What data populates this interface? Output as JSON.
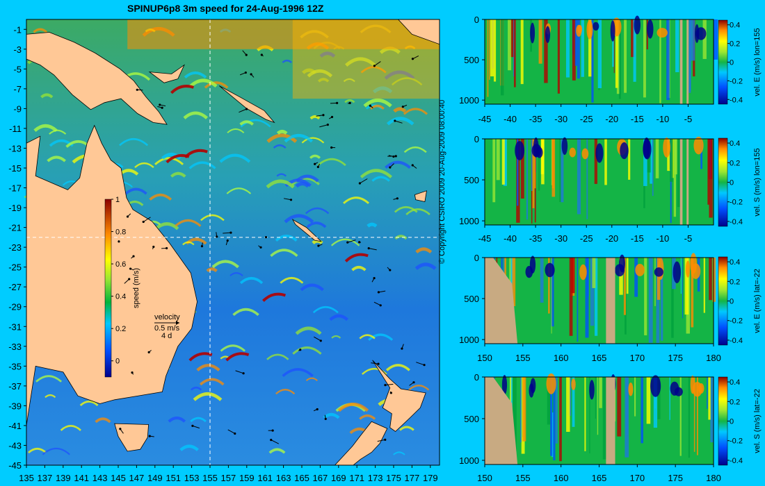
{
  "title": "SPINUP6p8 3m speed for 24-Aug-1996 12Z",
  "copyright": "© Copyright CSIRO 2009  20-Aug-2009 08:00:40",
  "colors": {
    "background": "#00ccff",
    "land": "#ffc896",
    "section_land": "#c8aa82",
    "guide_line": "#ffffff"
  },
  "chart_data": [
    {
      "type": "heatmap",
      "name": "map",
      "x_ticks": [
        135,
        137,
        139,
        141,
        143,
        145,
        147,
        149,
        151,
        153,
        155,
        157,
        159,
        161,
        163,
        165,
        167,
        169,
        171,
        173,
        175,
        177,
        179
      ],
      "y_ticks": [
        -1,
        -3,
        -5,
        -7,
        -9,
        -11,
        -13,
        -15,
        -17,
        -19,
        -21,
        -23,
        -25,
        -27,
        -29,
        -31,
        -33,
        -35,
        -37,
        -39,
        -41,
        -43,
        -45
      ],
      "xlim": [
        135,
        180
      ],
      "ylim": [
        -45,
        0
      ],
      "guide_lon": 155,
      "guide_lat": -22,
      "colorbar": {
        "label": "speed (m/s)",
        "ticks": [
          0,
          0.2,
          0.4,
          0.6,
          0.8,
          1
        ],
        "range": [
          -0.1,
          1
        ]
      },
      "velocity_legend": {
        "label": "velocity",
        "scale": "0.5 m/s",
        "time": "4 d"
      }
    },
    {
      "type": "heatmap",
      "name": "section-1",
      "colorbar_label": "vel. E (m/s) lon=155",
      "x_ticks": [
        -45,
        -40,
        -35,
        -30,
        -25,
        -20,
        -15,
        -10,
        -5
      ],
      "x_tick_labels": [
        "-45",
        "-40",
        "-35",
        "-30",
        "-25",
        "-20",
        "-15",
        "-10",
        "-5"
      ],
      "xlim": [
        -45,
        0
      ],
      "y_ticks": [
        0,
        500,
        1000
      ],
      "ylim": [
        1050,
        0
      ],
      "colorbar_ticks": [
        0.4,
        0.2,
        0,
        -0.2,
        -0.4
      ],
      "colorbar_tick_labels": [
        "0.4",
        "0.2",
        "0",
        "-0.2",
        "-0.4"
      ],
      "vrange": [
        -0.45,
        0.45
      ]
    },
    {
      "type": "heatmap",
      "name": "section-2",
      "colorbar_label": "vel. S (m/s) lon=155",
      "x_ticks": [
        -45,
        -40,
        -35,
        -30,
        -25,
        -20,
        -15,
        -10,
        -5
      ],
      "x_tick_labels": [
        "-45",
        "-40",
        "-35",
        "-30",
        "-25",
        "-20",
        "-15",
        "-10",
        "-5"
      ],
      "xlim": [
        -45,
        0
      ],
      "y_ticks": [
        0,
        500,
        1000
      ],
      "ylim": [
        1050,
        0
      ],
      "colorbar_ticks": [
        0.4,
        0.2,
        0,
        -0.2,
        -0.4
      ],
      "colorbar_tick_labels": [
        "0.4",
        "0.2",
        "0",
        "-0.2",
        "-0.4"
      ],
      "vrange": [
        -0.45,
        0.45
      ]
    },
    {
      "type": "heatmap",
      "name": "section-3",
      "colorbar_label": "vel. E (m/s) lat=-22",
      "x_ticks": [
        150,
        155,
        160,
        165,
        170,
        175,
        180
      ],
      "x_tick_labels": [
        "150",
        "155",
        "160",
        "165",
        "170",
        "175",
        "180"
      ],
      "xlim": [
        150,
        180
      ],
      "y_ticks": [
        0,
        500,
        1000
      ],
      "ylim": [
        1050,
        0
      ],
      "colorbar_ticks": [
        0.4,
        0.2,
        0,
        -0.2,
        -0.4
      ],
      "colorbar_tick_labels": [
        "0.4",
        "0.2",
        "0",
        "-0.2",
        "-0.4"
      ],
      "vrange": [
        -0.45,
        0.45
      ]
    },
    {
      "type": "heatmap",
      "name": "section-4",
      "colorbar_label": "vel. S (m/s) lat=-22",
      "x_ticks": [
        150,
        155,
        160,
        165,
        170,
        175,
        180
      ],
      "x_tick_labels": [
        "150",
        "155",
        "160",
        "165",
        "170",
        "175",
        "180"
      ],
      "xlim": [
        150,
        180
      ],
      "y_ticks": [
        0,
        500,
        1000
      ],
      "ylim": [
        1050,
        0
      ],
      "colorbar_ticks": [
        0.4,
        0.2,
        0,
        -0.2,
        -0.4
      ],
      "colorbar_tick_labels": [
        "0.4",
        "0.2",
        "0",
        "-0.2",
        "-0.4"
      ],
      "vrange": [
        -0.45,
        0.45
      ]
    }
  ]
}
